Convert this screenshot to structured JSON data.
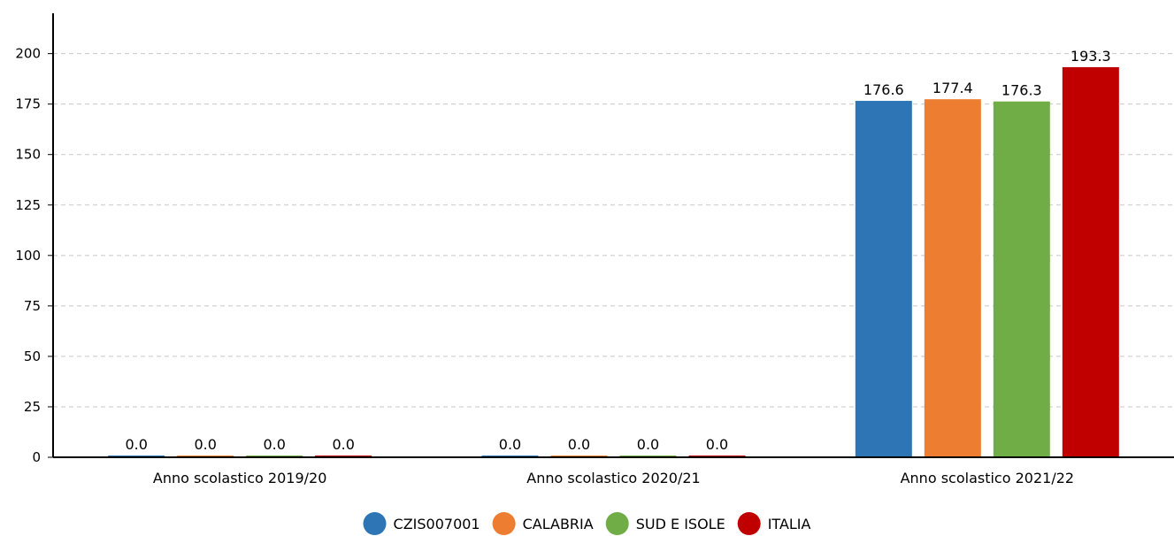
{
  "chart_data": {
    "type": "bar",
    "categories": [
      "Anno scolastico 2019/20",
      "Anno scolastico 2020/21",
      "Anno scolastico 2021/22"
    ],
    "series": [
      {
        "name": "CZIS007001",
        "color": "#2e75b6",
        "values": [
          0.0,
          0.0,
          176.6
        ],
        "labels": [
          "0.0",
          "0.0",
          "176.6"
        ]
      },
      {
        "name": "CALABRIA",
        "color": "#ed7d31",
        "values": [
          0.0,
          0.0,
          177.4
        ],
        "labels": [
          "0.0",
          "0.0",
          "177.4"
        ]
      },
      {
        "name": "SUD E ISOLE",
        "color": "#70ad47",
        "values": [
          0.0,
          0.0,
          176.3
        ],
        "labels": [
          "0.0",
          "0.0",
          "176.3"
        ]
      },
      {
        "name": "ITALIA",
        "color": "#c00000",
        "values": [
          0.0,
          0.0,
          193.3
        ],
        "labels": [
          "0.0",
          "0.0",
          "193.3"
        ]
      }
    ],
    "title": "",
    "xlabel": "",
    "ylabel": "",
    "ylim": [
      0,
      220
    ],
    "yticks": [
      0,
      25,
      50,
      75,
      100,
      125,
      150,
      175,
      200
    ],
    "grid": true,
    "legend": "bottom-center"
  }
}
